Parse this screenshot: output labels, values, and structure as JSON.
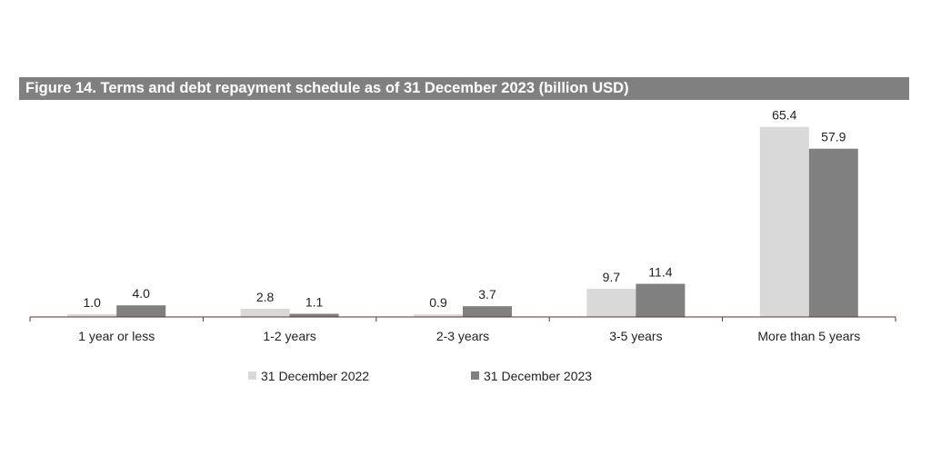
{
  "chart_data": {
    "type": "bar",
    "title": "Figure 14. Terms and debt repayment schedule as of 31 December 2023 (billion USD)",
    "categories": [
      "1 year or less",
      "1-2 years",
      "2-3 years",
      "3-5 years",
      "More than 5 years"
    ],
    "series": [
      {
        "name": "31 December 2022",
        "color": "#d9d9d9",
        "values": [
          1.0,
          2.8,
          0.9,
          9.7,
          65.4
        ],
        "labels": [
          "1.0",
          "2.8",
          "0.9",
          "9.7",
          "65.4"
        ]
      },
      {
        "name": "31 December 2023",
        "color": "#808080",
        "values": [
          4.0,
          1.1,
          3.7,
          11.4,
          57.9
        ],
        "labels": [
          "4.0",
          "1.1",
          "3.7",
          "11.4",
          "57.9"
        ]
      }
    ],
    "xlabel": "",
    "ylabel": "",
    "ylim": [
      0,
      66
    ],
    "grid": false,
    "legend": "bottom"
  }
}
